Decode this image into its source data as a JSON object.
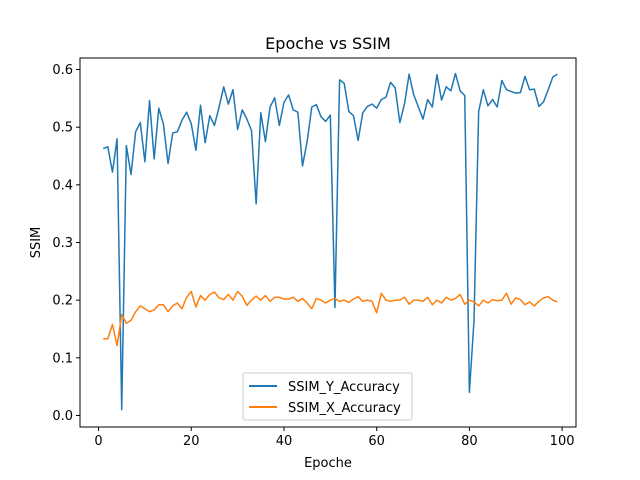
{
  "chart_data": {
    "type": "line",
    "title": "Epoche vs SSIM",
    "xlabel": "Epoche",
    "ylabel": "SSIM",
    "xlim": [
      -4,
      103
    ],
    "ylim": [
      -0.02,
      0.62
    ],
    "xticks": [
      0,
      20,
      40,
      60,
      80,
      100
    ],
    "yticks": [
      0.0,
      0.1,
      0.2,
      0.3,
      0.4,
      0.5,
      0.6
    ],
    "ytick_labels": [
      "0.0",
      "0.1",
      "0.2",
      "0.3",
      "0.4",
      "0.5",
      "0.6"
    ],
    "grid": false,
    "legend_position": "bottom-center",
    "x": [
      1,
      2,
      3,
      4,
      5,
      6,
      7,
      8,
      9,
      10,
      11,
      12,
      13,
      14,
      15,
      16,
      17,
      18,
      19,
      20,
      21,
      22,
      23,
      24,
      25,
      26,
      27,
      28,
      29,
      30,
      31,
      32,
      33,
      34,
      35,
      36,
      37,
      38,
      39,
      40,
      41,
      42,
      43,
      44,
      45,
      46,
      47,
      48,
      49,
      50,
      51,
      52,
      53,
      54,
      55,
      56,
      57,
      58,
      59,
      60,
      61,
      62,
      63,
      64,
      65,
      66,
      67,
      68,
      69,
      70,
      71,
      72,
      73,
      74,
      75,
      76,
      77,
      78,
      79,
      80,
      81,
      82,
      83,
      84,
      85,
      86,
      87,
      88,
      89,
      90,
      91,
      92,
      93,
      94,
      95,
      96,
      97,
      98,
      99
    ],
    "series": [
      {
        "name": "SSIM_Y_Accuracy",
        "color": "#1f77b4",
        "values": [
          0.463,
          0.466,
          0.422,
          0.48,
          0.01,
          0.468,
          0.418,
          0.492,
          0.508,
          0.44,
          0.546,
          0.445,
          0.533,
          0.505,
          0.437,
          0.49,
          0.492,
          0.512,
          0.526,
          0.506,
          0.46,
          0.538,
          0.473,
          0.52,
          0.503,
          0.535,
          0.57,
          0.54,
          0.565,
          0.496,
          0.53,
          0.514,
          0.494,
          0.367,
          0.525,
          0.475,
          0.535,
          0.551,
          0.503,
          0.543,
          0.556,
          0.53,
          0.526,
          0.433,
          0.475,
          0.535,
          0.539,
          0.518,
          0.51,
          0.521,
          0.187,
          0.582,
          0.576,
          0.527,
          0.52,
          0.477,
          0.525,
          0.536,
          0.54,
          0.533,
          0.548,
          0.552,
          0.578,
          0.568,
          0.508,
          0.54,
          0.592,
          0.556,
          0.535,
          0.514,
          0.548,
          0.535,
          0.591,
          0.547,
          0.57,
          0.563,
          0.593,
          0.563,
          0.555,
          0.04,
          0.165,
          0.527,
          0.565,
          0.537,
          0.548,
          0.535,
          0.581,
          0.565,
          0.562,
          0.559,
          0.56,
          0.588,
          0.565,
          0.566,
          0.536,
          0.544,
          0.565,
          0.587,
          0.592
        ]
      },
      {
        "name": "SSIM_X_Accuracy",
        "color": "#ff7f0e",
        "values": [
          0.133,
          0.133,
          0.158,
          0.121,
          0.175,
          0.16,
          0.165,
          0.18,
          0.19,
          0.185,
          0.18,
          0.183,
          0.192,
          0.192,
          0.18,
          0.19,
          0.195,
          0.185,
          0.205,
          0.215,
          0.188,
          0.208,
          0.2,
          0.21,
          0.214,
          0.204,
          0.201,
          0.21,
          0.2,
          0.215,
          0.207,
          0.191,
          0.2,
          0.207,
          0.2,
          0.208,
          0.198,
          0.205,
          0.205,
          0.202,
          0.202,
          0.205,
          0.198,
          0.203,
          0.195,
          0.185,
          0.203,
          0.2,
          0.195,
          0.2,
          0.203,
          0.198,
          0.2,
          0.196,
          0.202,
          0.206,
          0.198,
          0.2,
          0.198,
          0.178,
          0.212,
          0.2,
          0.198,
          0.2,
          0.2,
          0.205,
          0.193,
          0.2,
          0.2,
          0.198,
          0.205,
          0.192,
          0.2,
          0.195,
          0.205,
          0.2,
          0.203,
          0.21,
          0.193,
          0.2,
          0.197,
          0.19,
          0.2,
          0.195,
          0.201,
          0.199,
          0.2,
          0.212,
          0.193,
          0.204,
          0.201,
          0.192,
          0.197,
          0.19,
          0.198,
          0.204,
          0.206,
          0.2,
          0.197
        ]
      }
    ]
  }
}
